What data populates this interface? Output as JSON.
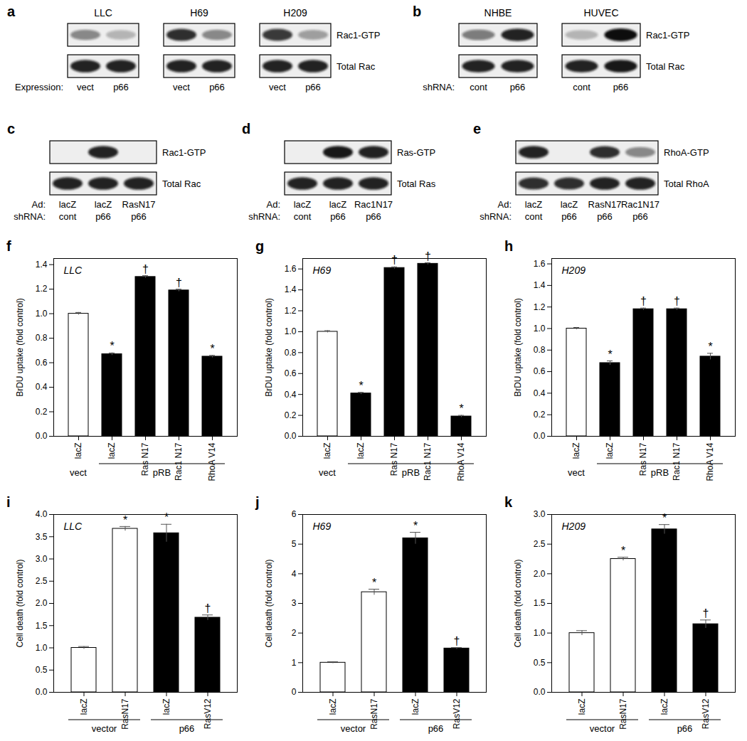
{
  "blots": [
    {
      "panel": "a",
      "row_labels": [
        "Rac1-GTP",
        "Total Rac"
      ],
      "conditions": [
        {
          "label": "Expression:",
          "lanes": [
            "vect",
            "p66"
          ]
        }
      ],
      "groups": [
        {
          "title": "LLC",
          "intensity": [
            [
              0.45,
              0.25
            ],
            [
              0.9,
              0.9
            ]
          ]
        },
        {
          "title": "H69",
          "intensity": [
            [
              0.85,
              0.45
            ],
            [
              0.9,
              0.9
            ]
          ]
        },
        {
          "title": "H209",
          "intensity": [
            [
              0.8,
              0.35
            ],
            [
              0.9,
              0.9
            ]
          ]
        }
      ]
    },
    {
      "panel": "b",
      "row_labels": [
        "Rac1-GTP",
        "Total Rac"
      ],
      "conditions": [
        {
          "label": "shRNA:",
          "lanes": [
            "cont",
            "p66"
          ]
        }
      ],
      "groups": [
        {
          "title": "NHBE",
          "intensity": [
            [
              0.5,
              0.9
            ],
            [
              0.9,
              0.9
            ]
          ]
        },
        {
          "title": "HUVEC",
          "intensity": [
            [
              0.25,
              1.0
            ],
            [
              0.9,
              0.95
            ]
          ]
        }
      ]
    },
    {
      "panel": "c",
      "row_labels": [
        "Rac1-GTP",
        "Total Rac"
      ],
      "conditions": [
        {
          "label": "Ad:",
          "lanes": [
            "lacZ",
            "lacZ",
            "RasN17"
          ]
        },
        {
          "label": "shRNA:",
          "lanes": [
            "cont",
            "p66",
            "p66"
          ]
        }
      ],
      "groups": [
        {
          "intensity": [
            [
              0,
              0.9,
              0
            ],
            [
              0.9,
              0.9,
              0.9
            ]
          ]
        }
      ]
    },
    {
      "panel": "d",
      "row_labels": [
        "Ras-GTP",
        "Total Ras"
      ],
      "conditions": [
        {
          "label": "Ad:",
          "lanes": [
            "lacZ",
            "lacZ",
            "Rac1N17"
          ]
        },
        {
          "label": "shRNA:",
          "lanes": [
            "cont",
            "p66",
            "p66"
          ]
        }
      ],
      "groups": [
        {
          "intensity": [
            [
              0,
              0.95,
              0.9
            ],
            [
              0.9,
              0.9,
              0.9
            ]
          ]
        }
      ]
    },
    {
      "panel": "e",
      "row_labels": [
        "RhoA-GTP",
        "Total RhoA"
      ],
      "conditions": [
        {
          "label": "Ad:",
          "lanes": [
            "lacZ",
            "lacZ",
            "RasN17",
            "Rac1N17"
          ]
        },
        {
          "label": "shRNA:",
          "lanes": [
            "cont",
            "p66",
            "p66",
            "p66"
          ]
        }
      ],
      "groups": [
        {
          "intensity": [
            [
              0.9,
              0,
              0.85,
              0.45
            ],
            [
              0.85,
              0.85,
              0.9,
              0.9
            ]
          ]
        }
      ]
    }
  ],
  "chart_data": [
    {
      "panel": "f",
      "type": "bar",
      "cell_line": "LLC",
      "y_label": "BrDU uptake (fold control)",
      "categories": [
        "lacZ",
        "lacZ",
        "Ras N17",
        "Rac1 N17",
        "RhoA V14"
      ],
      "values": [
        1.0,
        0.67,
        1.3,
        1.19,
        0.65
      ],
      "errors": [
        0.01,
        0.01,
        0.01,
        0.01,
        0.01
      ],
      "significance": [
        null,
        "*",
        "†",
        "†",
        "*"
      ],
      "colors": [
        "#ffffff",
        "#000000",
        "#000000",
        "#000000",
        "#000000"
      ],
      "groups": [
        {
          "label": "vect",
          "span": 1
        },
        {
          "label": "pRB",
          "span": 4
        }
      ],
      "ylim": [
        0,
        1.45
      ],
      "yticks": [
        {
          "value": 0,
          "label": "0.0"
        },
        0.2,
        0.4,
        0.6,
        0.8,
        {
          "value": 1,
          "label": "1.0"
        },
        1.2,
        1.4
      ],
      "grid": false
    },
    {
      "panel": "g",
      "type": "bar",
      "cell_line": "H69",
      "y_label": "BrDU uptake (fold control)",
      "categories": [
        "lacZ",
        "lacZ",
        "Ras N17",
        "Rac1 N17",
        "RhoA V14"
      ],
      "values": [
        1.0,
        0.41,
        1.61,
        1.65,
        0.19
      ],
      "errors": [
        0.01,
        0.01,
        0.01,
        0.01,
        0.01
      ],
      "significance": [
        null,
        "*",
        "†",
        "†",
        "*"
      ],
      "colors": [
        "#ffffff",
        "#000000",
        "#000000",
        "#000000",
        "#000000"
      ],
      "groups": [
        {
          "label": "vect",
          "span": 1
        },
        {
          "label": "pRB",
          "span": 4
        }
      ],
      "ylim": [
        0,
        1.7
      ],
      "yticks": [
        {
          "value": 0,
          "label": "0.0"
        },
        0.2,
        0.4,
        0.6,
        0.8,
        {
          "value": 1,
          "label": "1.0"
        },
        1.2,
        1.4,
        1.6
      ],
      "grid": false
    },
    {
      "panel": "h",
      "type": "bar",
      "cell_line": "H209",
      "y_label": "BrDU uptake (fold control)",
      "categories": [
        "lacZ",
        "lacZ",
        "Ras N17",
        "Rac1 N17",
        "RhoA V14"
      ],
      "values": [
        1.0,
        0.68,
        1.18,
        1.18,
        0.74
      ],
      "errors": [
        0.01,
        0.02,
        0.01,
        0.01,
        0.03
      ],
      "significance": [
        null,
        "*",
        "†",
        "†",
        "*"
      ],
      "colors": [
        "#ffffff",
        "#000000",
        "#000000",
        "#000000",
        "#000000"
      ],
      "groups": [
        {
          "label": "vect",
          "span": 1
        },
        {
          "label": "pRB",
          "span": 4
        }
      ],
      "ylim": [
        0,
        1.65
      ],
      "yticks": [
        {
          "value": 0,
          "label": "0.0"
        },
        0.2,
        0.4,
        0.6,
        0.8,
        {
          "value": 1,
          "label": "1.0"
        },
        1.2,
        1.4,
        1.6
      ],
      "grid": false
    },
    {
      "panel": "i",
      "type": "bar",
      "cell_line": "LLC",
      "y_label": "Cell death (fold control)",
      "categories": [
        "lacZ",
        "RasN17",
        "lacZ",
        "RasV12"
      ],
      "values": [
        1.0,
        3.68,
        3.58,
        1.68
      ],
      "errors": [
        0.03,
        0.05,
        0.2,
        0.06
      ],
      "significance": [
        null,
        "*",
        "*",
        "†"
      ],
      "colors": [
        "#ffffff",
        "#ffffff",
        "#000000",
        "#000000"
      ],
      "groups": [
        {
          "label": "vector",
          "span": 2
        },
        {
          "label": "p66",
          "span": 2
        }
      ],
      "ylim": [
        0,
        4
      ],
      "yticks": [
        {
          "value": 0,
          "label": "0.0"
        },
        0.5,
        {
          "value": 1,
          "label": "1.0"
        },
        1.5,
        {
          "value": 2,
          "label": "2.0"
        },
        2.5,
        {
          "value": 3,
          "label": "3.0"
        },
        3.5,
        {
          "value": 4,
          "label": "4.0"
        }
      ],
      "grid": false
    },
    {
      "panel": "j",
      "type": "bar",
      "cell_line": "H69",
      "y_label": "Cell death (fold control)",
      "categories": [
        "lacZ",
        "RasN17",
        "lacZ",
        "RasV12"
      ],
      "values": [
        1.0,
        3.38,
        5.2,
        1.48
      ],
      "errors": [
        0.03,
        0.1,
        0.2,
        0.03
      ],
      "significance": [
        null,
        "*",
        "*",
        "†"
      ],
      "colors": [
        "#ffffff",
        "#ffffff",
        "#000000",
        "#000000"
      ],
      "groups": [
        {
          "label": "vector",
          "span": 2
        },
        {
          "label": "p66",
          "span": 2
        }
      ],
      "ylim": [
        0,
        6
      ],
      "yticks": [
        0,
        1,
        2,
        3,
        4,
        5,
        6
      ],
      "grid": false
    },
    {
      "panel": "k",
      "type": "bar",
      "cell_line": "H209",
      "y_label": "Cell death (fold control)",
      "categories": [
        "lacZ",
        "RasN17",
        "lacZ",
        "RasV12"
      ],
      "values": [
        1.0,
        2.25,
        2.75,
        1.15
      ],
      "errors": [
        0.04,
        0.03,
        0.08,
        0.07
      ],
      "significance": [
        null,
        "*",
        "*",
        "†"
      ],
      "colors": [
        "#ffffff",
        "#ffffff",
        "#000000",
        "#000000"
      ],
      "groups": [
        {
          "label": "vector",
          "span": 2
        },
        {
          "label": "p66",
          "span": 2
        }
      ],
      "ylim": [
        0,
        3
      ],
      "yticks": [
        {
          "value": 0,
          "label": "0.0"
        },
        0.5,
        {
          "value": 1,
          "label": "1.0"
        },
        1.5,
        {
          "value": 2,
          "label": "2.0"
        },
        2.5,
        {
          "value": 3,
          "label": "3.0"
        }
      ],
      "grid": false
    }
  ]
}
